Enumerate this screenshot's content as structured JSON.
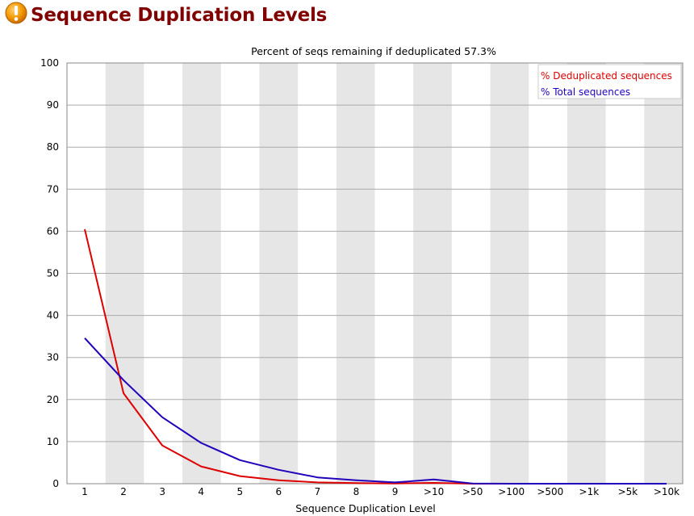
{
  "header": {
    "title": "Sequence Duplication Levels",
    "status_icon": "warning-icon",
    "status_color": "#f0a000"
  },
  "chart_data": {
    "type": "line",
    "title": "Percent of seqs remaining if deduplicated 57.3%",
    "xlabel": "Sequence Duplication Level",
    "ylabel": "",
    "ylim": [
      0,
      100
    ],
    "yticks": [
      0,
      10,
      20,
      30,
      40,
      50,
      60,
      70,
      80,
      90,
      100
    ],
    "grid": true,
    "legend_position": "top-right",
    "categories": [
      "1",
      "2",
      "3",
      "4",
      "5",
      "6",
      "7",
      "8",
      "9",
      ">10",
      ">50",
      ">100",
      ">500",
      ">1k",
      ">5k",
      ">10k"
    ],
    "series": [
      {
        "name": "% Deduplicated sequences",
        "color": "#dd0000",
        "values": [
          60.5,
          21.5,
          9.1,
          4.1,
          1.8,
          0.8,
          0.3,
          0.15,
          0.05,
          0.2,
          0,
          0,
          0,
          0,
          0,
          0
        ]
      },
      {
        "name": "% Total sequences",
        "color": "#2200bb",
        "values": [
          34.6,
          24.6,
          15.8,
          9.7,
          5.6,
          3.3,
          1.5,
          0.8,
          0.3,
          1.0,
          0.05,
          0,
          0,
          0,
          0,
          0
        ]
      }
    ]
  }
}
